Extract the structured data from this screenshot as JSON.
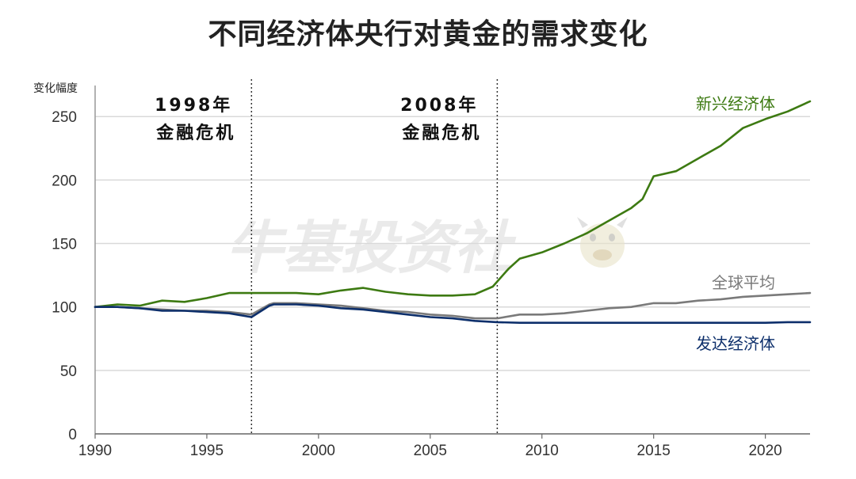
{
  "title": "不同经济体央行对黄金的需求变化",
  "watermark": "牛基投资社",
  "colors": {
    "emerging": "#3d7a12",
    "global": "#7a7a7a",
    "developed": "#0d2f6b",
    "grid": "#d9d9d9",
    "axis": "#999999"
  },
  "chart_data": {
    "type": "line",
    "title": "不同经济体央行对黄金的需求变化",
    "ylabel": "变化幅度",
    "xlabel": "",
    "xlim": [
      1990,
      2022
    ],
    "ylim": [
      0,
      262
    ],
    "xticks": [
      1990,
      1995,
      2000,
      2005,
      2010,
      2015,
      2020
    ],
    "yticks": [
      0,
      50,
      100,
      150,
      200,
      250
    ],
    "grid": "horizontal",
    "annotations": [
      {
        "x": 1997,
        "line1": "1998年",
        "line2": "金融危机"
      },
      {
        "x": 2008,
        "line1": "2008年",
        "line2": "金融危机"
      }
    ],
    "series": [
      {
        "name": "新兴经济体",
        "color": "#3d7a12",
        "points": [
          [
            1990,
            100
          ],
          [
            1991,
            102
          ],
          [
            1992,
            101
          ],
          [
            1993,
            105
          ],
          [
            1994,
            104
          ],
          [
            1995,
            107
          ],
          [
            1996,
            111
          ],
          [
            1997,
            111
          ],
          [
            1998,
            111
          ],
          [
            1999,
            111
          ],
          [
            2000,
            110
          ],
          [
            2001,
            113
          ],
          [
            2002,
            115
          ],
          [
            2003,
            112
          ],
          [
            2004,
            110
          ],
          [
            2005,
            109
          ],
          [
            2006,
            109
          ],
          [
            2007,
            110
          ],
          [
            2007.8,
            116
          ],
          [
            2008.5,
            130
          ],
          [
            2009,
            138
          ],
          [
            2010,
            143
          ],
          [
            2011,
            150
          ],
          [
            2012,
            158
          ],
          [
            2013,
            168
          ],
          [
            2014,
            178
          ],
          [
            2014.5,
            185
          ],
          [
            2015,
            203
          ],
          [
            2016,
            207
          ],
          [
            2017,
            217
          ],
          [
            2018,
            227
          ],
          [
            2019,
            241
          ],
          [
            2020,
            248
          ],
          [
            2021,
            254
          ],
          [
            2022,
            262
          ]
        ]
      },
      {
        "name": "全球平均",
        "color": "#7a7a7a",
        "points": [
          [
            1990,
            100
          ],
          [
            1991,
            100
          ],
          [
            1992,
            99
          ],
          [
            1993,
            98
          ],
          [
            1994,
            97
          ],
          [
            1995,
            97
          ],
          [
            1996,
            96
          ],
          [
            1997,
            94
          ],
          [
            1997.8,
            102
          ],
          [
            1998,
            103
          ],
          [
            1999,
            103
          ],
          [
            2000,
            102
          ],
          [
            2001,
            101
          ],
          [
            2002,
            99
          ],
          [
            2003,
            97
          ],
          [
            2004,
            96
          ],
          [
            2005,
            94
          ],
          [
            2006,
            93
          ],
          [
            2007,
            91
          ],
          [
            2008,
            91
          ],
          [
            2009,
            94
          ],
          [
            2010,
            94
          ],
          [
            2011,
            95
          ],
          [
            2012,
            97
          ],
          [
            2013,
            99
          ],
          [
            2014,
            100
          ],
          [
            2015,
            103
          ],
          [
            2016,
            103
          ],
          [
            2017,
            105
          ],
          [
            2018,
            106
          ],
          [
            2019,
            108
          ],
          [
            2020,
            109
          ],
          [
            2021,
            110
          ],
          [
            2022,
            111
          ]
        ]
      },
      {
        "name": "发达经济体",
        "color": "#0d2f6b",
        "points": [
          [
            1990,
            100
          ],
          [
            1991,
            100
          ],
          [
            1992,
            99
          ],
          [
            1993,
            97
          ],
          [
            1994,
            97
          ],
          [
            1995,
            96
          ],
          [
            1996,
            95
          ],
          [
            1997,
            92
          ],
          [
            1997.8,
            101
          ],
          [
            1998,
            102
          ],
          [
            1999,
            102
          ],
          [
            2000,
            101
          ],
          [
            2001,
            99
          ],
          [
            2002,
            98
          ],
          [
            2003,
            96
          ],
          [
            2004,
            94
          ],
          [
            2005,
            92
          ],
          [
            2006,
            91
          ],
          [
            2007,
            89
          ],
          [
            2008,
            88
          ],
          [
            2009,
            87.5
          ],
          [
            2010,
            87.5
          ],
          [
            2011,
            87.5
          ],
          [
            2012,
            87.5
          ],
          [
            2013,
            87.5
          ],
          [
            2014,
            87.5
          ],
          [
            2015,
            87.5
          ],
          [
            2016,
            87.5
          ],
          [
            2017,
            87.5
          ],
          [
            2018,
            87.5
          ],
          [
            2019,
            87.5
          ],
          [
            2020,
            87.5
          ],
          [
            2021,
            88
          ],
          [
            2022,
            88
          ]
        ]
      }
    ]
  }
}
